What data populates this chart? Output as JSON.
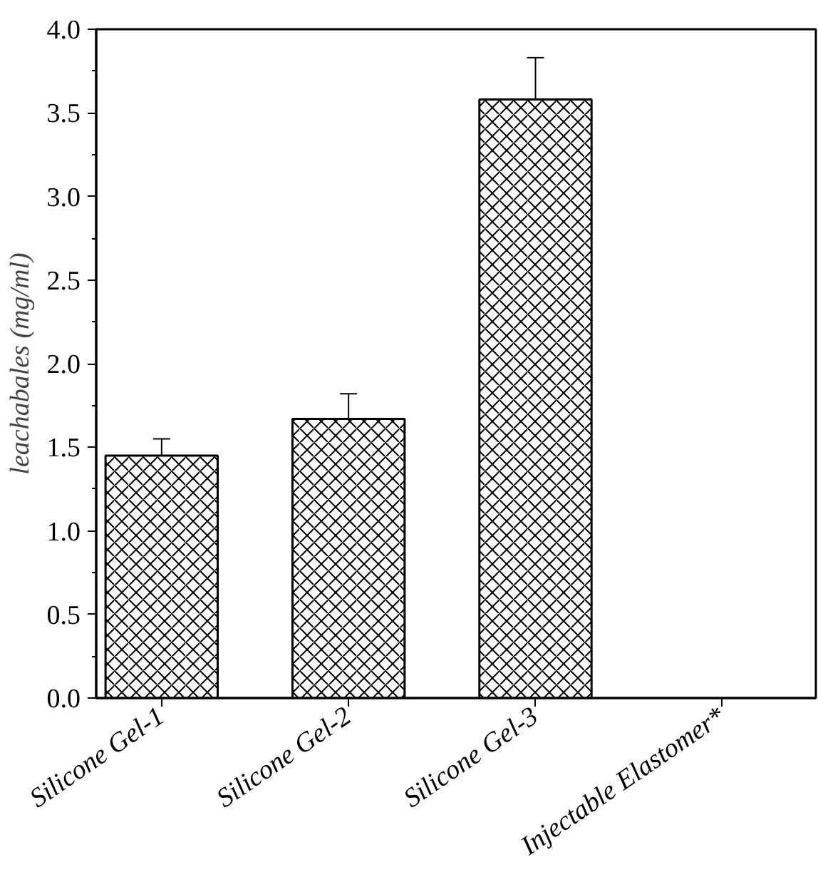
{
  "chart_data": {
    "type": "bar",
    "ylabel": "leachabales (mg/ml)",
    "categories": [
      "Silicone Gel-1",
      "Silicone Gel-2",
      "Silicone Gel-3",
      "Injectable Elastomer*"
    ],
    "values": [
      1.45,
      1.67,
      3.58,
      null
    ],
    "errors": [
      0.1,
      0.15,
      0.25,
      null
    ],
    "color": "#ffffff",
    "ylim": [
      0,
      4.0
    ],
    "yticks": [
      {
        "value": 0,
        "label": "0.0"
      },
      {
        "value": 0.5,
        "label": "0.5"
      },
      {
        "value": 1,
        "label": "1.0"
      },
      {
        "value": 1.5,
        "label": "1.5"
      },
      {
        "value": 2,
        "label": "2.0"
      },
      {
        "value": 2.5,
        "label": "2.5"
      },
      {
        "value": 3,
        "label": "3.0"
      },
      {
        "value": 3.5,
        "label": "3.5"
      },
      {
        "value": 4,
        "label": "4.0"
      }
    ],
    "grid": false
  }
}
